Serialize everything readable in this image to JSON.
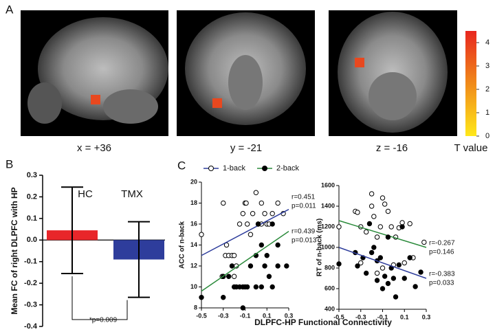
{
  "panel_labels": [
    "A",
    "B",
    "C"
  ],
  "brain_slices": [
    {
      "label": "x = +36"
    },
    {
      "label": "y = -21"
    },
    {
      "label": "z = -16"
    }
  ],
  "colorbar": {
    "label": "T value",
    "ylim": [
      0,
      4.5
    ],
    "yticks": [
      0,
      1,
      2,
      3,
      4
    ],
    "colors": [
      "#ffe81a",
      "#f08a1a",
      "#e8261f"
    ]
  },
  "panel_c_xlabel": "DLPFC-HP Functional Connectivity",
  "chart_data": [
    {
      "type": "bar",
      "ylabel": "Mean FC of right DLPFC with HP",
      "categories": [
        "HC",
        "TMX"
      ],
      "values": [
        0.045,
        -0.09
      ],
      "errors": [
        0.2,
        0.175
      ],
      "colors": [
        "#e8262a",
        "#2e3d9c"
      ],
      "ylim": [
        -0.4,
        0.3
      ],
      "yticks": [
        -0.4,
        -0.3,
        -0.2,
        -0.1,
        {
          "value": 0,
          "label": "0.0"
        },
        0.1,
        0.2,
        0.3
      ],
      "annotation": "*p=0.009"
    },
    {
      "type": "scatter",
      "ylabel": "ACC of n-back",
      "xlim": [
        -0.5,
        0.3
      ],
      "xticks": [
        -0.5,
        -0.3,
        -0.1,
        0.1,
        0.3
      ],
      "ylim": [
        8,
        20
      ],
      "yticks": [
        8,
        10,
        12,
        14,
        16,
        18,
        20
      ],
      "series": [
        {
          "name": "1-back",
          "marker": "open",
          "color": "#2e3d9c",
          "x": [
            -0.5,
            -0.3,
            -0.3,
            -0.28,
            -0.31,
            -0.27,
            -0.25,
            -0.22,
            -0.2,
            -0.2,
            -0.18,
            -0.15,
            -0.12,
            -0.1,
            -0.09,
            -0.08,
            -0.05,
            -0.03,
            0,
            0.02,
            0.05,
            0.05,
            0.08,
            0.1,
            0.12,
            0.15,
            0.2,
            0.25
          ],
          "y": [
            15,
            18,
            11,
            13,
            11,
            14,
            13,
            13,
            13,
            11,
            12,
            16,
            17,
            18,
            18,
            16,
            15,
            17,
            19,
            16,
            18,
            16,
            17,
            16,
            16,
            17,
            18,
            17
          ],
          "fit": {
            "x": [
              -0.5,
              0.3
            ],
            "y": [
              13,
              17.4
            ]
          },
          "r_label": "r=0.451",
          "p_label": "p=0.011"
        },
        {
          "name": "2-back",
          "marker": "filled",
          "color": "#2a8a3a",
          "x": [
            -0.5,
            -0.3,
            -0.3,
            -0.25,
            -0.2,
            -0.18,
            -0.15,
            -0.12,
            -0.1,
            -0.08,
            -0.05,
            0,
            0,
            0.02,
            0.05,
            0.05,
            0.08,
            0.1,
            0.12,
            0.15,
            0.15,
            0.2,
            0.2,
            0.28,
            -0.22,
            -0.12
          ],
          "y": [
            9,
            11,
            9,
            11,
            10,
            10,
            10,
            10,
            10,
            10,
            12,
            13,
            10,
            16,
            14,
            10,
            12,
            13,
            11,
            10,
            16,
            14,
            12,
            12,
            12,
            8
          ],
          "fit": {
            "x": [
              -0.5,
              0.3
            ],
            "y": [
              9.6,
              15.3
            ]
          },
          "r_label": "r=0.439",
          "p_label": "p=0.013"
        }
      ]
    },
    {
      "type": "scatter",
      "ylabel": "RT of n-back (ms)",
      "xlim": [
        -0.5,
        0.3
      ],
      "xticks": [
        -0.5,
        -0.3,
        -0.1,
        0.1,
        0.3
      ],
      "ylim": [
        400,
        1600
      ],
      "yticks": [
        400,
        600,
        800,
        1000,
        1200,
        1400,
        1600
      ],
      "series": [
        {
          "marker": "open",
          "color": "#2a8a3a",
          "x": [
            -0.5,
            -0.35,
            -0.33,
            -0.3,
            -0.3,
            -0.25,
            -0.2,
            -0.2,
            -0.18,
            -0.15,
            -0.12,
            -0.1,
            -0.08,
            -0.05,
            -0.02,
            0.02,
            0.05,
            0.08,
            0.1,
            0.15,
            0.18,
            0.28,
            -0.15,
            -0.1,
            0
          ],
          "y": [
            1200,
            1350,
            1340,
            1200,
            850,
            1150,
            1520,
            1400,
            1300,
            1100,
            1200,
            1480,
            1420,
            1350,
            1200,
            1100,
            1190,
            1240,
            850,
            1230,
            900,
            1050,
            750,
            800,
            830
          ],
          "fit": {
            "x": [
              -0.5,
              0.3
            ],
            "y": [
              1260,
              1000
            ]
          },
          "r_label": "r=-0.267",
          "p_label": "p=0.146"
        },
        {
          "marker": "filled",
          "color": "#2e3d9c",
          "x": [
            -0.5,
            -0.35,
            -0.33,
            -0.25,
            -0.22,
            -0.2,
            -0.18,
            -0.15,
            -0.15,
            -0.12,
            -0.1,
            -0.08,
            -0.05,
            -0.05,
            -0.02,
            0,
            0.02,
            0.05,
            0.08,
            0.1,
            0.15,
            0.2,
            0.25,
            -0.28
          ],
          "y": [
            840,
            950,
            820,
            750,
            1230,
            950,
            1000,
            870,
            680,
            900,
            600,
            720,
            1100,
            650,
            800,
            700,
            520,
            830,
            1200,
            700,
            900,
            620,
            760,
            900
          ],
          "fit": {
            "x": [
              -0.5,
              0.3
            ],
            "y": [
              1000,
              700
            ]
          },
          "r_label": "r=-0.383",
          "p_label": "p=0.033"
        }
      ]
    }
  ]
}
